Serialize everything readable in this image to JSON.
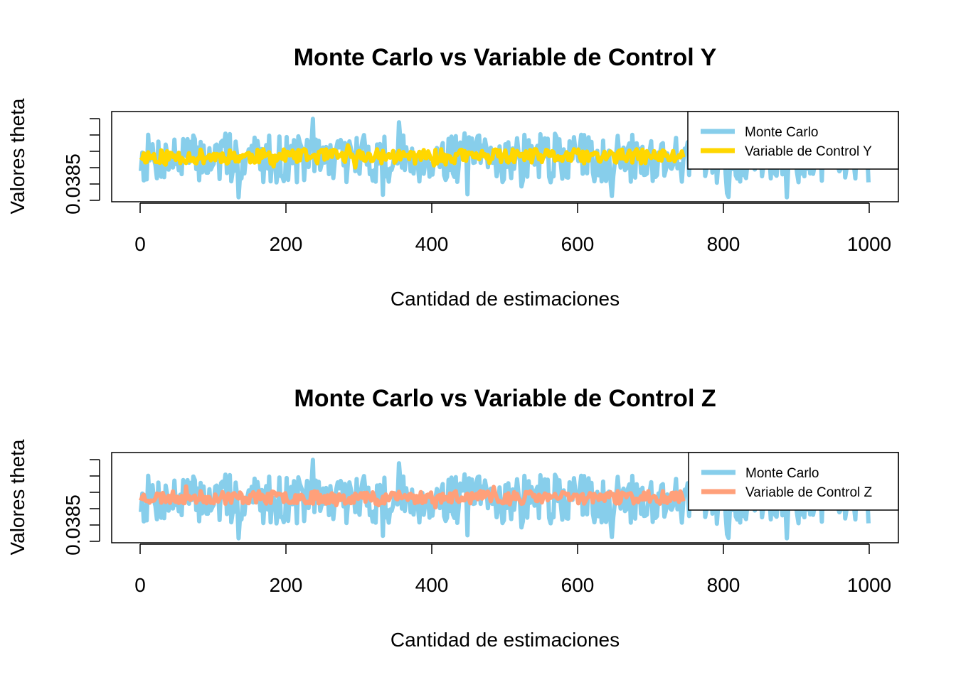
{
  "chart_data": [
    {
      "type": "line",
      "title": "Monte Carlo vs Variable de Control Y",
      "xlabel": "Cantidad de estimaciones",
      "ylabel": "Valores theta",
      "xlim": [
        0,
        1000
      ],
      "x_ticks": [
        "0",
        "200",
        "400",
        "600",
        "800",
        "1000"
      ],
      "y_tick_label": "0.0385",
      "y_tick_count": 6,
      "legend_position": "top-right",
      "series": [
        {
          "name": "Monte Carlo",
          "color": "#87CEEB",
          "x_range": [
            1,
            1000
          ],
          "center": 0.5,
          "spread": 0.55,
          "seed": 7
        },
        {
          "name": "Variable de Control Y",
          "color": "#FFD700",
          "x_range": [
            1,
            745
          ],
          "center": 0.52,
          "spread": 0.16,
          "seed": 11
        }
      ]
    },
    {
      "type": "line",
      "title": "Monte Carlo vs Variable de Control Z",
      "xlabel": "Cantidad de estimaciones",
      "ylabel": "Valores theta",
      "xlim": [
        0,
        1000
      ],
      "x_ticks": [
        "0",
        "200",
        "400",
        "600",
        "800",
        "1000"
      ],
      "y_tick_label": "0.0385",
      "y_tick_count": 6,
      "legend_position": "top-right",
      "series": [
        {
          "name": "Monte Carlo",
          "color": "#87CEEB",
          "x_range": [
            1,
            1000
          ],
          "center": 0.5,
          "spread": 0.55,
          "seed": 7
        },
        {
          "name": "Variable de Control Z",
          "color": "#FFA07A",
          "x_range": [
            1,
            745
          ],
          "center": 0.52,
          "spread": 0.14,
          "seed": 23
        }
      ]
    }
  ]
}
